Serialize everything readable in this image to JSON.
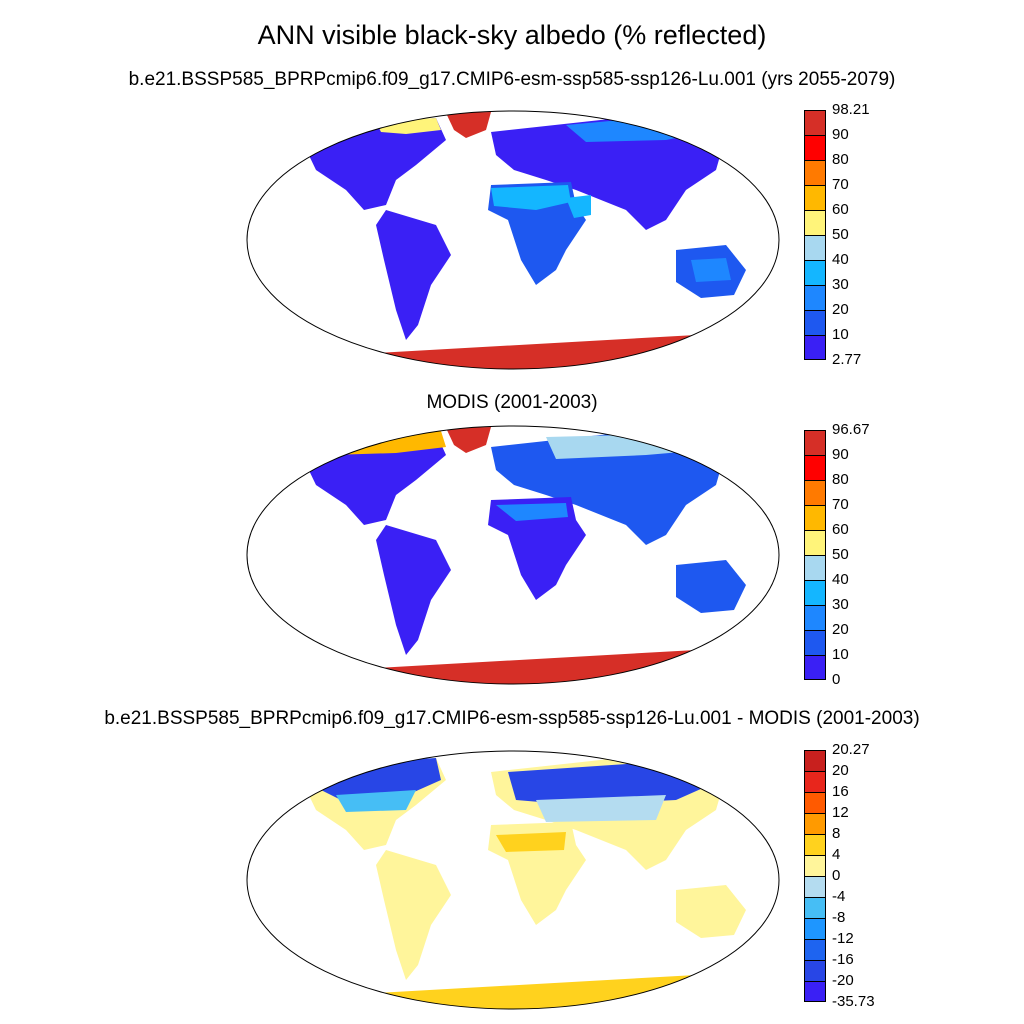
{
  "figure": {
    "title": "ANN visible black-sky albedo (% reflected)"
  },
  "panels": [
    {
      "title": "b.e21.BSSP585_BPRPcmip6.f09_g17.CMIP6-esm-ssp585-ssp126-Lu.001 (yrs 2055-2079)",
      "colorbar": {
        "labels": [
          "98.21",
          "90",
          "80",
          "70",
          "60",
          "50",
          "40",
          "30",
          "20",
          "10",
          "2.77"
        ],
        "colors": [
          "#d62f27",
          "#ff0000",
          "#ff7a00",
          "#ffb800",
          "#fff47a",
          "#a8d8f0",
          "#14b6ff",
          "#1e87ff",
          "#1e58f0",
          "#3a20f5"
        ]
      }
    },
    {
      "title": "MODIS (2001-2003)",
      "colorbar": {
        "labels": [
          "96.67",
          "90",
          "80",
          "70",
          "60",
          "50",
          "40",
          "30",
          "20",
          "10",
          "0"
        ],
        "colors": [
          "#d62f27",
          "#ff0000",
          "#ff7a00",
          "#ffb800",
          "#fff47a",
          "#a8d8f0",
          "#14b6ff",
          "#1e87ff",
          "#1e58f0",
          "#3a20f5"
        ]
      }
    },
    {
      "title": "b.e21.BSSP585_BPRPcmip6.f09_g17.CMIP6-esm-ssp585-ssp126-Lu.001 - MODIS (2001-2003)",
      "colorbar": {
        "labels": [
          "20.27",
          "20",
          "16",
          "12",
          "8",
          "4",
          "0",
          "-4",
          "-8",
          "-12",
          "-16",
          "-20",
          "-35.73"
        ],
        "colors": [
          "#c8201e",
          "#e8261c",
          "#ff5a00",
          "#ff9a00",
          "#ffd21e",
          "#fff59b",
          "#b4dcf0",
          "#46bef5",
          "#1e96ff",
          "#1e64f0",
          "#2846e6",
          "#3a20f5"
        ]
      }
    }
  ]
}
